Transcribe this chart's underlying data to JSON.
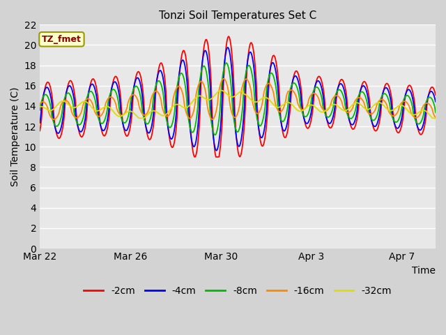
{
  "title": "Tonzi Soil Temperatures Set C",
  "xlabel": "Time",
  "ylabel": "Soil Temperature (C)",
  "ylim": [
    0,
    22
  ],
  "yticks": [
    0,
    2,
    4,
    6,
    8,
    10,
    12,
    14,
    16,
    18,
    20,
    22
  ],
  "fig_bg_color": "#d3d3d3",
  "plot_bg_color": "#e8e8e8",
  "grid_color": "#ffffff",
  "legend_label": "TZ_fmet",
  "series_colors": [
    "#ff0000",
    "#0000ff",
    "#00bb00",
    "#ff8800",
    "#dddd00"
  ],
  "series_labels": [
    "-2cm",
    "-4cm",
    "-8cm",
    "-16cm",
    "-32cm"
  ],
  "x_tick_labels": [
    "Mar 22",
    "Mar 26",
    "Mar 30",
    "Apr 3",
    "Apr 7"
  ],
  "x_tick_positions": [
    0,
    4,
    8,
    12,
    16
  ],
  "xlim": [
    0,
    17.5
  ],
  "n_days": 17.5,
  "title_fontsize": 11,
  "axis_fontsize": 10,
  "tick_fontsize": 10
}
